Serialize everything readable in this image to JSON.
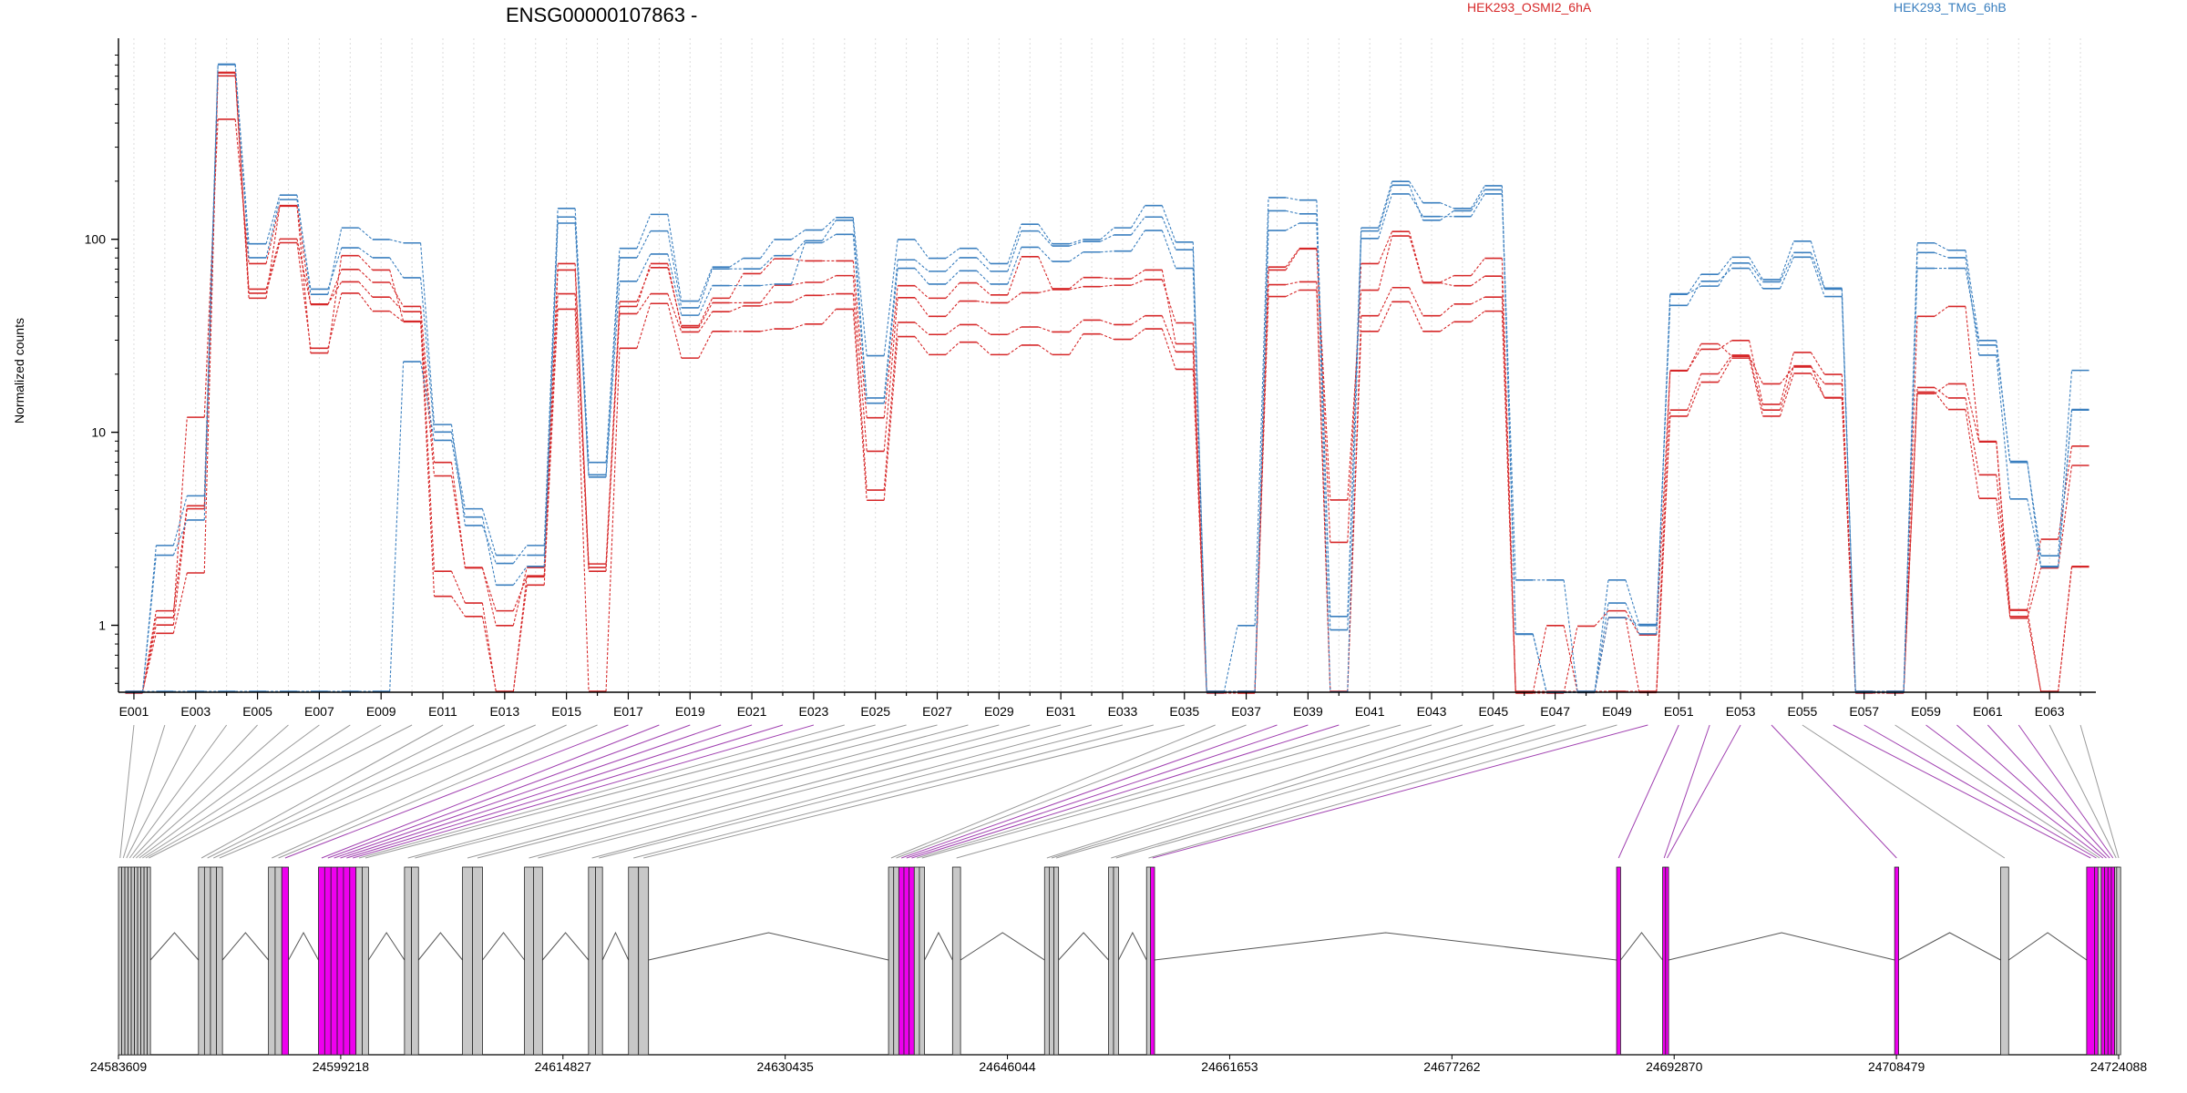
{
  "chart_data": {
    "type": "line",
    "title": "ENSG00000107863 -",
    "xlabel": "",
    "ylabel": "Normalized counts",
    "yscale": "log",
    "ylim": [
      0.45,
      1100
    ],
    "y_ticks": [
      1,
      10,
      100
    ],
    "y_tick_labels": [
      "1",
      "10",
      "100"
    ],
    "grid": "vertical dotted lines at each exon bin",
    "legend": [
      {
        "name": "HEK293_OSMI2_6hA",
        "color": "#d62728",
        "position": "top-center"
      },
      {
        "name": "HEK293_TMG_6hB",
        "color": "#3a7fbf",
        "position": "top-right"
      }
    ],
    "exon_bins": [
      "E001",
      "E002",
      "E003",
      "E004",
      "E005",
      "E006",
      "E007",
      "E008",
      "E009",
      "E010",
      "E011",
      "E012",
      "E013",
      "E014",
      "E015",
      "E016",
      "E017",
      "E018",
      "E019",
      "E020",
      "E021",
      "E022",
      "E023",
      "E024",
      "E025",
      "E026",
      "E027",
      "E028",
      "E029",
      "E030",
      "E031",
      "E032",
      "E033",
      "E034",
      "E035",
      "E036",
      "E037",
      "E038",
      "E039",
      "E040",
      "E041",
      "E042",
      "E043",
      "E044",
      "E045",
      "E046",
      "E047",
      "E048",
      "E049",
      "E050",
      "E051",
      "E052",
      "E053",
      "E054",
      "E055",
      "E056",
      "E057",
      "E058",
      "E059",
      "E060",
      "E061",
      "E062",
      "E063",
      "E064"
    ],
    "exon_tick_labels": [
      "E001",
      "E003",
      "E005",
      "E007",
      "E009",
      "E011",
      "E013",
      "E015",
      "E017",
      "E019",
      "E021",
      "E023",
      "E025",
      "E027",
      "E029",
      "E031",
      "E033",
      "E035",
      "E037",
      "E039",
      "E041",
      "E043",
      "E045",
      "E047",
      "E049",
      "E051",
      "E053",
      "E055",
      "E057",
      "E059",
      "E061",
      "E063"
    ],
    "highlighted_bins": [
      "E017",
      "E018",
      "E019",
      "E020",
      "E021",
      "E022",
      "E023",
      "E038",
      "E039",
      "E040",
      "E050",
      "E051",
      "E052",
      "E053",
      "E054",
      "E056",
      "E057",
      "E059",
      "E060",
      "E061",
      "E062"
    ],
    "series": [
      {
        "name": "HEK293_OSMI2_6hA",
        "color": "#d62728",
        "values": [
          0.45,
          0.9,
          1.85,
          720,
          52,
          95,
          27,
          52,
          42,
          37,
          1.4,
          1.1,
          0.45,
          1.6,
          43,
          0.45,
          27,
          46,
          24,
          33,
          33,
          34,
          36,
          43,
          4.4,
          31,
          25,
          29,
          25,
          28,
          25,
          32,
          30,
          34,
          21,
          0.45,
          0.45,
          50,
          54,
          0.45,
          33,
          47,
          33,
          37,
          42,
          0.45,
          0.45,
          0.45,
          0.45,
          0.45,
          12,
          18,
          24,
          12,
          20,
          15,
          0.45,
          0.45,
          16,
          13,
          4.5,
          1.1,
          0.45,
          2
        ]
      },
      {
        "name": "HEK293_OSMI2_6hA",
        "color": "#d62728",
        "values": [
          0.45,
          1.0,
          4.0,
          700,
          55,
          100,
          46,
          60,
          50,
          42,
          1.9,
          1.3,
          0.45,
          1.8,
          52,
          1.9,
          41,
          52,
          33,
          42,
          45,
          47,
          51,
          52,
          5.0,
          37,
          32,
          36,
          32,
          35,
          33,
          38,
          36,
          40,
          26,
          0.45,
          0.45,
          58,
          60,
          0.45,
          40,
          56,
          40,
          46,
          50,
          0.45,
          0.45,
          0.45,
          0.45,
          0.45,
          13,
          20,
          25,
          13,
          22,
          15,
          0.45,
          0.45,
          17,
          15,
          6,
          1.2,
          0.45,
          2
        ]
      },
      {
        "name": "HEK293_OSMI2_6hA",
        "color": "#d62728",
        "values": [
          0.45,
          1.1,
          12,
          420,
          75,
          150,
          46,
          70,
          60,
          45,
          7,
          2.0,
          1.0,
          2.0,
          75,
          2.0,
          45,
          75,
          35,
          47,
          47,
          58,
          60,
          65,
          8,
          50,
          40,
          48,
          47,
          53,
          55,
          57,
          58,
          62,
          37,
          0.45,
          0.45,
          72,
          90,
          2.7,
          75,
          110,
          60,
          65,
          80,
          0.45,
          1.0,
          0.45,
          1.1,
          0.45,
          21,
          27,
          30,
          14,
          26,
          20,
          0.45,
          0.45,
          40,
          45,
          9,
          1.2,
          2.8,
          8.5
        ]
      },
      {
        "name": "HEK293_OSMI2_6hA",
        "color": "#d62728",
        "values": [
          0.45,
          1.2,
          4.2,
          740,
          50,
          150,
          26,
          83,
          70,
          38,
          6,
          2.0,
          1.2,
          1.8,
          70,
          2.1,
          48,
          72,
          36,
          50,
          67,
          80,
          78,
          78,
          12,
          58,
          50,
          60,
          52,
          82,
          56,
          64,
          63,
          70,
          29,
          0.45,
          0.45,
          70,
          90,
          4.5,
          55,
          105,
          60,
          58,
          65,
          0.45,
          0.45,
          1.0,
          1.2,
          0.9,
          21,
          29,
          25,
          18,
          22,
          18,
          0.45,
          0.45,
          16,
          18,
          9,
          1.1,
          2.0,
          6.8
        ]
      },
      {
        "name": "HEK293_TMG_6hB",
        "color": "#3a7fbf",
        "values": [
          0.45,
          0.45,
          0.45,
          0.45,
          0.45,
          0.45,
          0.45,
          0.45,
          0.45,
          23,
          9,
          3.6,
          1.6,
          2.0,
          120,
          5.8,
          60,
          83,
          40,
          57,
          57,
          58,
          95,
          105,
          14,
          70,
          58,
          68,
          58,
          90,
          76,
          85,
          86,
          110,
          70,
          0.45,
          0.45,
          110,
          120,
          1.1,
          100,
          170,
          130,
          130,
          170,
          1.7,
          1.7,
          0.45,
          1.7,
          1.0,
          45,
          60,
          70,
          55,
          80,
          50,
          0.45,
          0.45,
          70,
          70,
          28,
          7,
          2.0,
          13
        ]
      },
      {
        "name": "HEK293_TMG_6hB",
        "color": "#3a7fbf",
        "values": [
          0.45,
          2.3,
          3.5,
          800,
          80,
          160,
          55,
          90,
          80,
          63,
          10,
          4.0,
          2.3,
          2.3,
          130,
          6,
          80,
          110,
          44,
          70,
          70,
          82,
          98,
          125,
          15,
          78,
          68,
          80,
          68,
          110,
          92,
          97,
          105,
          130,
          88,
          0.45,
          0.45,
          140,
          135,
          0.45,
          110,
          190,
          125,
          140,
          180,
          0.9,
          0.45,
          0.45,
          1.3,
          0.9,
          52,
          57,
          75,
          60,
          85,
          55,
          0.45,
          0.45,
          85,
          80,
          25,
          4.5,
          2.0,
          13
        ]
      },
      {
        "name": "HEK293_TMG_6hB",
        "color": "#3a7fbf",
        "values": [
          0.45,
          2.6,
          4.7,
          810,
          95,
          170,
          52,
          115,
          100,
          96,
          11,
          3.3,
          2.1,
          2.6,
          145,
          7,
          90,
          135,
          48,
          72,
          80,
          100,
          112,
          130,
          25,
          100,
          80,
          90,
          75,
          120,
          95,
          100,
          115,
          150,
          97,
          0.45,
          1.0,
          165,
          160,
          0.95,
          115,
          200,
          155,
          145,
          190,
          0.9,
          0.45,
          0.45,
          1.1,
          1.0,
          52,
          66,
          81,
          62,
          98,
          56,
          0.45,
          0.45,
          96,
          88,
          30,
          7,
          2.3,
          21
        ]
      }
    ]
  },
  "gene_model": {
    "coordinate_ticks": [
      "24583609",
      "24599218",
      "24614827",
      "24630435",
      "24646044",
      "24661653",
      "24677262",
      "24692870",
      "24708479",
      "24724088"
    ],
    "colors": {
      "exon_fill": "#c8c8c8",
      "highlight_fill": "#ee00ee",
      "intron_line": "#555555",
      "link_gray": "#9a9a9a",
      "link_purple": "#a040b0"
    }
  }
}
